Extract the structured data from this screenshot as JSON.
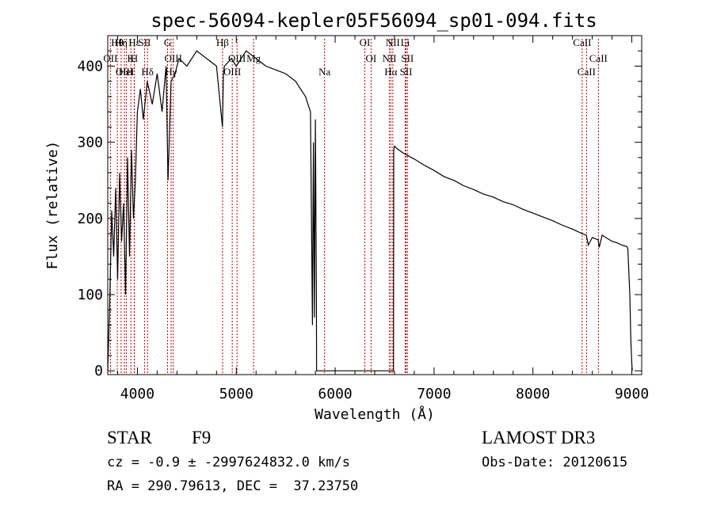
{
  "chart_data": {
    "type": "line",
    "title": "spec-56094-kepler05F56094_sp01-094.fits",
    "xlabel": "Wavelength (Å)",
    "ylabel": "Flux (relative)",
    "xlim": [
      3700,
      9100
    ],
    "ylim": [
      -5,
      440
    ],
    "xticks": [
      4000,
      5000,
      6000,
      7000,
      8000,
      9000
    ],
    "xtick_labels": [
      "4000",
      "5000",
      "6000",
      "7000",
      "8000",
      "9000"
    ],
    "yticks": [
      0,
      100,
      200,
      300,
      400
    ],
    "ytick_labels": [
      "0",
      "100",
      "200",
      "300",
      "400"
    ],
    "series": [
      {
        "name": "spectrum",
        "color": "#000000",
        "x": [
          3700,
          3720,
          3740,
          3760,
          3780,
          3800,
          3820,
          3840,
          3860,
          3880,
          3900,
          3920,
          3940,
          3960,
          3980,
          4000,
          4030,
          4060,
          4100,
          4150,
          4200,
          4250,
          4290,
          4310,
          4340,
          4380,
          4420,
          4500,
          4600,
          4700,
          4800,
          4860,
          4870,
          4880,
          4950,
          5000,
          5100,
          5200,
          5300,
          5400,
          5500,
          5600,
          5700,
          5750,
          5770,
          5780,
          5790,
          5800,
          5810,
          5812,
          5820,
          5900,
          6000,
          6100,
          6200,
          6300,
          6400,
          6500,
          6560,
          6580,
          6590,
          6592,
          6600,
          6620,
          6700,
          6800,
          6900,
          7000,
          7100,
          7200,
          7300,
          7400,
          7500,
          7600,
          7700,
          7800,
          7900,
          8000,
          8100,
          8200,
          8300,
          8400,
          8500,
          8540,
          8560,
          8600,
          8660,
          8670,
          8700,
          8800,
          8850,
          8900,
          8950,
          8960,
          8980,
          8990,
          9000,
          9005
        ],
        "y": [
          0,
          90,
          210,
          150,
          240,
          120,
          260,
          170,
          220,
          100,
          280,
          150,
          290,
          200,
          250,
          340,
          370,
          330,
          380,
          350,
          390,
          340,
          400,
          250,
          380,
          390,
          410,
          400,
          420,
          410,
          400,
          320,
          390,
          400,
          410,
          400,
          420,
          410,
          400,
          395,
          390,
          380,
          360,
          340,
          60,
          300,
          70,
          330,
          100,
          0,
          0,
          0,
          0,
          0,
          0,
          0,
          0,
          0,
          0,
          0,
          0,
          290,
          295,
          292,
          285,
          278,
          270,
          263,
          255,
          250,
          243,
          238,
          232,
          228,
          222,
          218,
          212,
          207,
          202,
          197,
          191,
          186,
          180,
          178,
          165,
          175,
          172,
          162,
          178,
          170,
          168,
          165,
          163,
          160,
          100,
          40,
          10,
          0
        ]
      }
    ],
    "lines": [
      {
        "label": "Hθ",
        "x": 3797
      },
      {
        "label": "OII",
        "x": 3727
      },
      {
        "label": "OIII",
        "x": 3869
      },
      {
        "label": "Hε",
        "x": 3970
      },
      {
        "label": "K",
        "x": 3934
      },
      {
        "label": "HeI",
        "x": 3889
      },
      {
        "label": "Hη",
        "x": 3835
      },
      {
        "label": "H",
        "x": 3968
      },
      {
        "label": "Hδ",
        "x": 4102
      },
      {
        "label": "SII",
        "x": 4072
      },
      {
        "label": "OIII",
        "x": 4363
      },
      {
        "label": "Hγ",
        "x": 4341
      },
      {
        "label": "G",
        "x": 4305
      },
      {
        "label": "OIII",
        "x": 5007
      },
      {
        "label": "OIII",
        "x": 4959
      },
      {
        "label": "Hβ",
        "x": 4861
      },
      {
        "label": "Mg",
        "x": 5175
      },
      {
        "label": "Na",
        "x": 5893
      },
      {
        "label": "OI",
        "x": 6300
      },
      {
        "label": "OI",
        "x": 6363
      },
      {
        "label": "Hα",
        "x": 6563
      },
      {
        "label": "NII",
        "x": 6583
      },
      {
        "label": "NII",
        "x": 6548
      },
      {
        "label": "SII",
        "x": 6717
      },
      {
        "label": "Li",
        "x": 6708
      },
      {
        "label": "SII",
        "x": 6731
      },
      {
        "label": "CaII",
        "x": 8542
      },
      {
        "label": "CaII",
        "x": 8498
      },
      {
        "label": "CaII",
        "x": 8662
      }
    ]
  },
  "info": {
    "object_class": "STAR",
    "subclass": "F9",
    "survey": "LAMOST DR3",
    "cz_line": "cz = -0.9 ± -2997624832.0 km/s",
    "obs_date": "Obs-Date: 20120615",
    "coords_line": "RA = 290.79613, DEC =  37.23750"
  }
}
